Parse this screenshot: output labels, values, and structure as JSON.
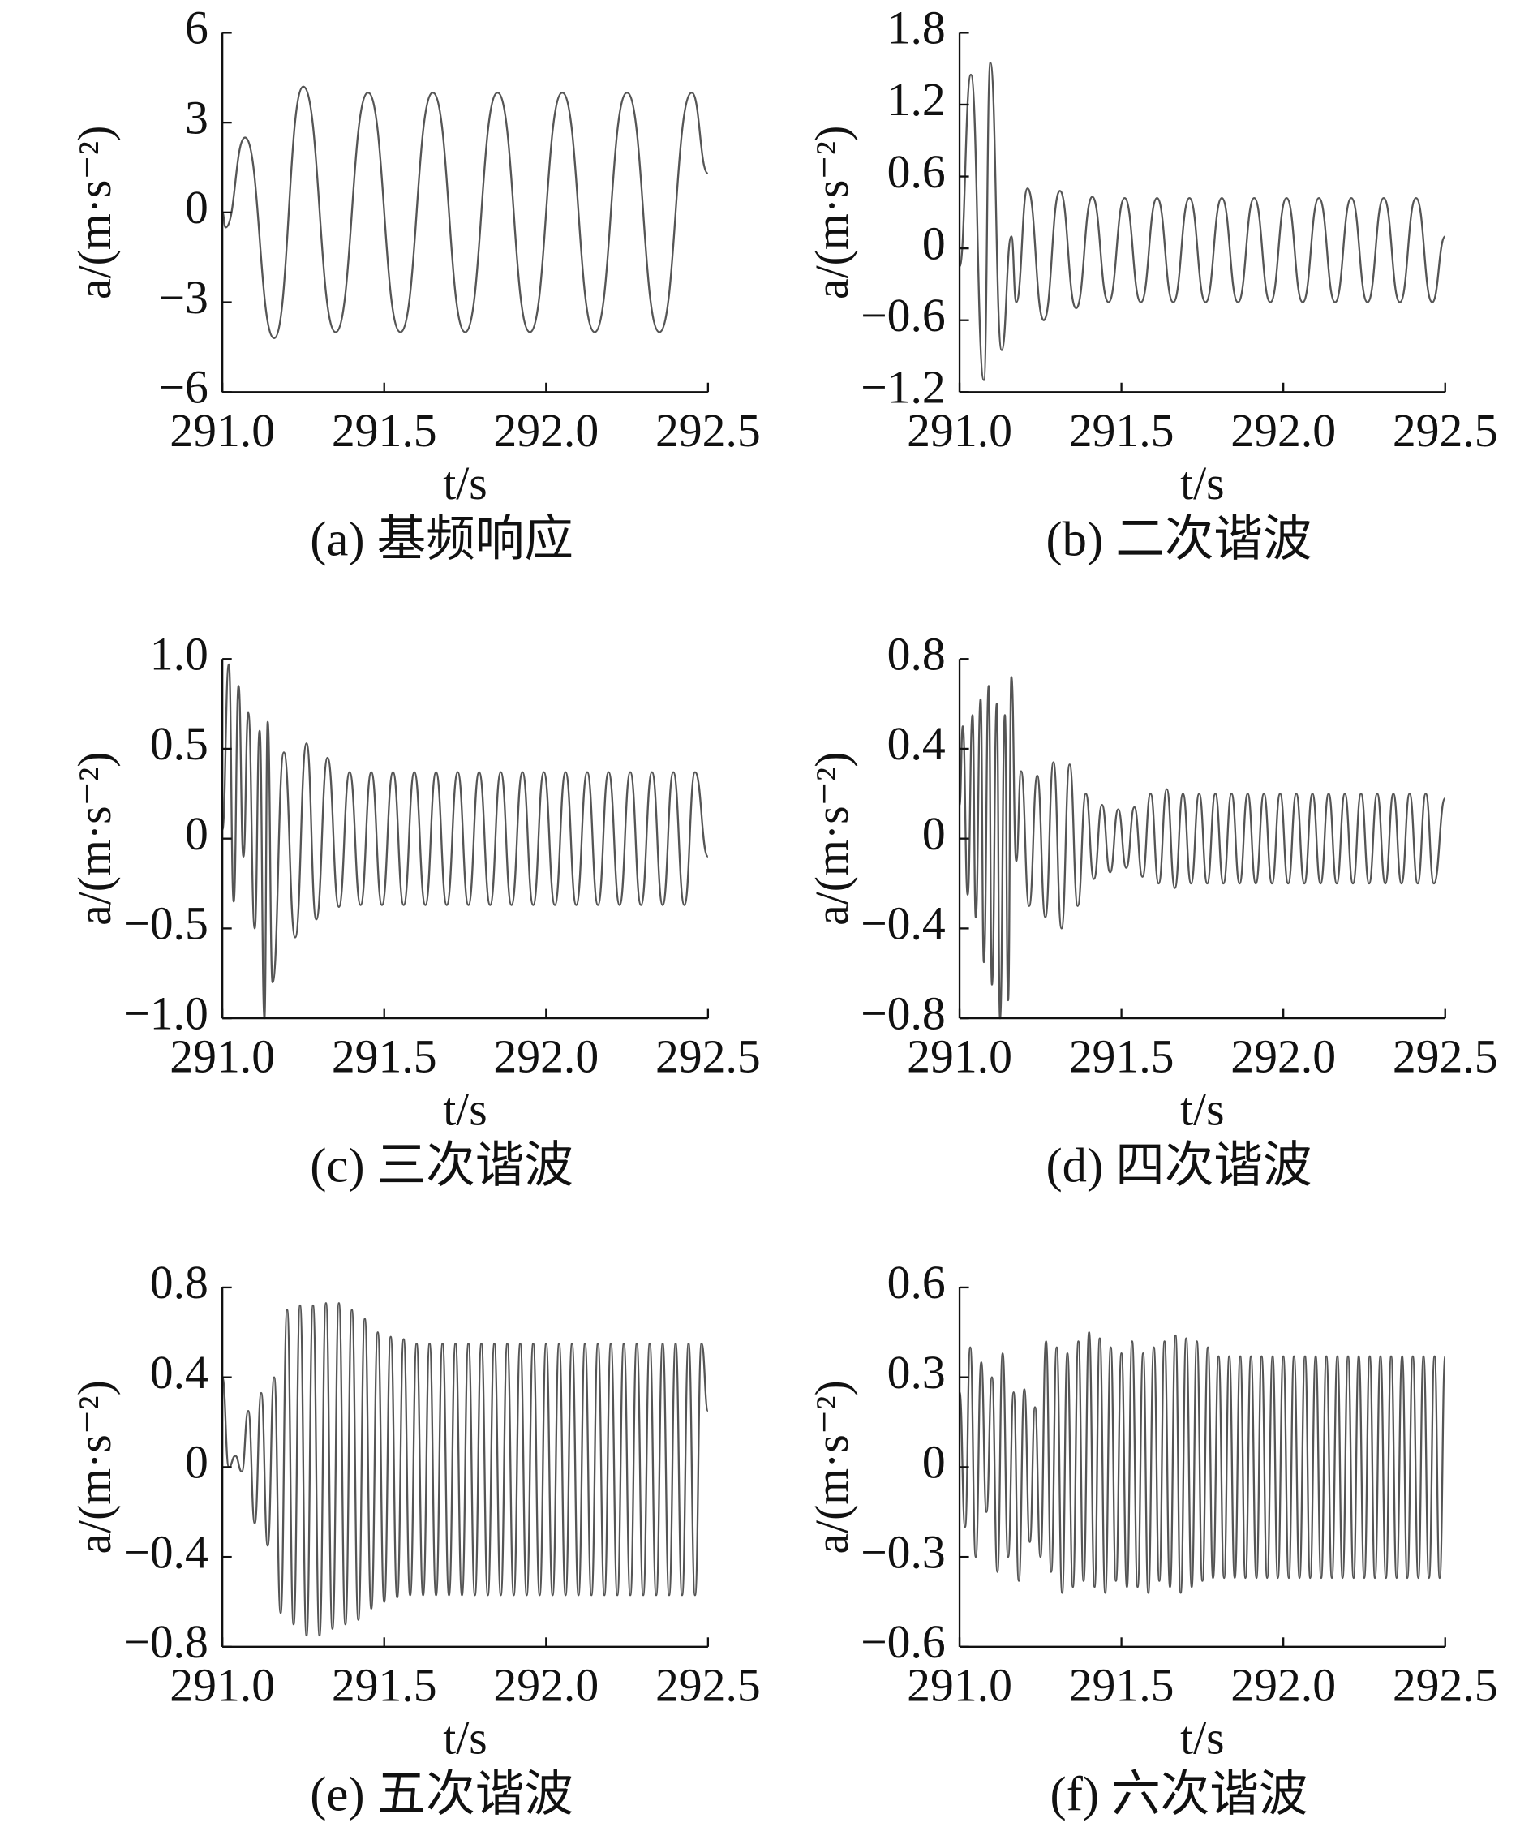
{
  "chart_data": [
    {
      "type": "line",
      "title": "(a) 基频响应",
      "xlabel": "t/s",
      "ylabel": "a/(m·s⁻²)",
      "x": [
        291,
        291.01,
        291.07,
        291.16,
        291.25,
        291.35,
        291.45,
        291.55,
        291.65,
        291.75,
        291.85,
        291.95,
        292.05,
        292.15,
        292.25,
        292.35,
        292.45,
        292.5
      ],
      "values": [
        0,
        -0.5,
        2.5,
        -4.2,
        4.2,
        -4,
        4,
        -4,
        4,
        -4,
        4,
        -4,
        4,
        -4,
        4,
        -4,
        4,
        1.3
      ],
      "xlim": [
        291,
        292.5
      ],
      "xticks": [
        {
          "value": 291,
          "label": "291.0"
        },
        291.5,
        {
          "value": 292,
          "label": "292.0"
        },
        292.5
      ],
      "ylim": [
        -6,
        6
      ],
      "yticks": [
        {
          "value": -6,
          "label": "−6"
        },
        {
          "value": -3,
          "label": "−3"
        },
        0,
        3,
        6
      ]
    },
    {
      "type": "line",
      "title": "(b) 二次谐波",
      "xlabel": "t/s",
      "ylabel": "a/(m·s⁻²)",
      "x": [
        291,
        291.035,
        291.075,
        291.095,
        291.13,
        291.16,
        291.175,
        291.21,
        291.26,
        291.31,
        291.36,
        291.41,
        291.46,
        291.51,
        291.56,
        291.61,
        291.66,
        291.71,
        291.76,
        291.81,
        291.86,
        291.91,
        291.96,
        292.01,
        292.06,
        292.11,
        292.16,
        292.21,
        292.26,
        292.31,
        292.36,
        292.41,
        292.46,
        292.5
      ],
      "values": [
        -0.15,
        1.45,
        -1.1,
        1.55,
        -0.85,
        0.1,
        -0.45,
        0.5,
        -0.6,
        0.48,
        -0.5,
        0.43,
        -0.45,
        0.42,
        -0.45,
        0.42,
        -0.45,
        0.42,
        -0.45,
        0.42,
        -0.45,
        0.42,
        -0.45,
        0.42,
        -0.45,
        0.42,
        -0.45,
        0.42,
        -0.45,
        0.42,
        -0.45,
        0.42,
        -0.45,
        0.1
      ],
      "xlim": [
        291,
        292.5
      ],
      "xticks": [
        {
          "value": 291,
          "label": "291.0"
        },
        291.5,
        {
          "value": 292,
          "label": "292.0"
        },
        292.5
      ],
      "ylim": [
        -1.2,
        1.8
      ],
      "yticks": [
        {
          "value": -1.2,
          "label": "−1.2"
        },
        {
          "value": -0.6,
          "label": "−0.6"
        },
        0,
        0.6,
        1.2,
        1.8
      ]
    },
    {
      "type": "line",
      "title": "(c) 三次谐波",
      "xlabel": "t/s",
      "ylabel": "a/(m·s⁻²)",
      "x": [
        291,
        291.02,
        291.035,
        291.05,
        291.065,
        291.08,
        291.1,
        291.115,
        291.13,
        291.14,
        291.155,
        291.19,
        291.225,
        291.26,
        291.29,
        291.325,
        291.36,
        291.393,
        291.427,
        291.46,
        291.493,
        291.527,
        291.56,
        291.593,
        291.627,
        291.66,
        291.693,
        291.727,
        291.76,
        291.793,
        291.827,
        291.86,
        291.893,
        291.927,
        291.96,
        291.993,
        292.027,
        292.06,
        292.093,
        292.127,
        292.16,
        292.193,
        292.227,
        292.26,
        292.293,
        292.327,
        292.36,
        292.393,
        292.427,
        292.46,
        292.5
      ],
      "values": [
        0.05,
        0.97,
        -0.35,
        0.85,
        -0.1,
        0.7,
        -0.5,
        0.6,
        -1.0,
        0.65,
        -0.8,
        0.48,
        -0.55,
        0.53,
        -0.45,
        0.45,
        -0.38,
        0.37,
        -0.37,
        0.37,
        -0.37,
        0.37,
        -0.37,
        0.37,
        -0.37,
        0.37,
        -0.37,
        0.37,
        -0.37,
        0.37,
        -0.37,
        0.37,
        -0.37,
        0.37,
        -0.37,
        0.37,
        -0.37,
        0.37,
        -0.37,
        0.37,
        -0.37,
        0.37,
        -0.37,
        0.37,
        -0.37,
        0.37,
        -0.37,
        0.37,
        -0.37,
        0.37,
        -0.1
      ],
      "xlim": [
        291,
        292.5
      ],
      "xticks": [
        {
          "value": 291,
          "label": "291.0"
        },
        291.5,
        {
          "value": 292,
          "label": "292.0"
        },
        292.5
      ],
      "ylim": [
        -1,
        1
      ],
      "yticks": [
        {
          "value": -1,
          "label": "−1.0"
        },
        {
          "value": -0.5,
          "label": "−0.5"
        },
        0,
        0.5,
        {
          "value": 1,
          "label": "1.0"
        }
      ]
    },
    {
      "type": "line",
      "title": "(d) 四次谐波",
      "xlabel": "t/s",
      "ylabel": "a/(m·s⁻²)",
      "x": [
        291,
        291.01,
        291.025,
        291.04,
        291.05,
        291.065,
        291.075,
        291.09,
        291.1,
        291.115,
        291.125,
        291.14,
        291.15,
        291.16,
        291.175,
        291.19,
        291.215,
        291.24,
        291.265,
        291.29,
        291.315,
        291.34,
        291.365,
        291.39,
        291.415,
        291.44,
        291.465,
        291.49,
        291.515,
        291.54,
        291.565,
        291.59,
        291.615,
        291.64,
        291.665,
        291.69,
        291.715,
        291.74,
        291.765,
        291.79,
        291.815,
        291.84,
        291.865,
        291.89,
        291.915,
        291.94,
        291.965,
        291.99,
        292.015,
        292.04,
        292.065,
        292.09,
        292.115,
        292.14,
        292.165,
        292.19,
        292.215,
        292.24,
        292.265,
        292.29,
        292.315,
        292.34,
        292.365,
        292.39,
        292.415,
        292.44,
        292.465,
        292.5
      ],
      "values": [
        0.15,
        0.5,
        -0.25,
        0.55,
        -0.35,
        0.62,
        -0.55,
        0.68,
        -0.65,
        0.6,
        -0.8,
        0.55,
        -0.72,
        0.72,
        -0.1,
        0.3,
        -0.3,
        0.28,
        -0.35,
        0.34,
        -0.4,
        0.33,
        -0.3,
        0.2,
        -0.18,
        0.15,
        -0.15,
        0.13,
        -0.13,
        0.14,
        -0.17,
        0.2,
        -0.2,
        0.22,
        -0.22,
        0.2,
        -0.2,
        0.2,
        -0.2,
        0.2,
        -0.2,
        0.2,
        -0.2,
        0.2,
        -0.2,
        0.2,
        -0.2,
        0.2,
        -0.2,
        0.2,
        -0.2,
        0.2,
        -0.2,
        0.2,
        -0.2,
        0.2,
        -0.2,
        0.2,
        -0.2,
        0.2,
        -0.2,
        0.2,
        -0.2,
        0.2,
        -0.2,
        0.2,
        -0.2,
        0.18
      ],
      "xlim": [
        291,
        292.5
      ],
      "xticks": [
        {
          "value": 291,
          "label": "291.0"
        },
        291.5,
        {
          "value": 292,
          "label": "292.0"
        },
        292.5
      ],
      "ylim": [
        -0.8,
        0.8
      ],
      "yticks": [
        {
          "value": -0.8,
          "label": "−0.8"
        },
        {
          "value": -0.4,
          "label": "−0.4"
        },
        0,
        0.4,
        0.8
      ]
    },
    {
      "type": "line",
      "title": "(e) 五次谐波",
      "xlabel": "t/s",
      "ylabel": "a/(m·s⁻²)",
      "x": [
        291,
        291.02,
        291.04,
        291.06,
        291.08,
        291.1,
        291.12,
        291.14,
        291.16,
        291.18,
        291.2,
        291.22,
        291.24,
        291.26,
        291.28,
        291.3,
        291.32,
        291.34,
        291.36,
        291.38,
        291.4,
        291.42,
        291.44,
        291.46,
        291.48,
        291.5,
        291.52,
        291.54,
        291.56,
        291.58,
        291.6,
        291.62,
        291.64,
        291.66,
        291.68,
        291.7,
        291.72,
        291.74,
        291.76,
        291.78,
        291.8,
        291.82,
        291.84,
        291.86,
        291.88,
        291.9,
        291.92,
        291.94,
        291.96,
        291.98,
        292,
        292.02,
        292.04,
        292.06,
        292.08,
        292.1,
        292.12,
        292.14,
        292.16,
        292.18,
        292.2,
        292.22,
        292.24,
        292.26,
        292.28,
        292.3,
        292.32,
        292.34,
        292.36,
        292.38,
        292.4,
        292.42,
        292.44,
        292.46,
        292.48,
        292.5
      ],
      "values": [
        0.4,
        0,
        0.05,
        -0.02,
        0.25,
        -0.25,
        0.33,
        -0.35,
        0.4,
        -0.65,
        0.7,
        -0.7,
        0.72,
        -0.75,
        0.72,
        -0.75,
        0.73,
        -0.72,
        0.73,
        -0.7,
        0.7,
        -0.68,
        0.66,
        -0.63,
        0.6,
        -0.6,
        0.58,
        -0.58,
        0.57,
        -0.57,
        0.55,
        -0.57,
        0.55,
        -0.57,
        0.55,
        -0.57,
        0.55,
        -0.57,
        0.55,
        -0.57,
        0.55,
        -0.57,
        0.55,
        -0.57,
        0.55,
        -0.57,
        0.55,
        -0.57,
        0.55,
        -0.57,
        0.55,
        -0.57,
        0.55,
        -0.57,
        0.55,
        -0.57,
        0.55,
        -0.57,
        0.55,
        -0.57,
        0.55,
        -0.57,
        0.55,
        -0.57,
        0.55,
        -0.57,
        0.55,
        -0.57,
        0.55,
        -0.57,
        0.55,
        -0.57,
        0.55,
        -0.57,
        0.55,
        0.25
      ],
      "xlim": [
        291,
        292.5
      ],
      "xticks": [
        {
          "value": 291,
          "label": "291.0"
        },
        291.5,
        {
          "value": 292,
          "label": "292.0"
        },
        292.5
      ],
      "ylim": [
        -0.8,
        0.8
      ],
      "yticks": [
        {
          "value": -0.8,
          "label": "−0.8"
        },
        {
          "value": -0.4,
          "label": "−0.4"
        },
        0,
        0.4,
        0.8
      ]
    },
    {
      "type": "line",
      "title": "(f) 六次谐波",
      "xlabel": "t/s",
      "ylabel": "a/(m·s⁻²)",
      "x": [
        291,
        291.017,
        291.033,
        291.05,
        291.067,
        291.083,
        291.1,
        291.117,
        291.133,
        291.15,
        291.167,
        291.183,
        291.2,
        291.217,
        291.233,
        291.25,
        291.267,
        291.283,
        291.3,
        291.317,
        291.333,
        291.35,
        291.367,
        291.383,
        291.4,
        291.417,
        291.433,
        291.45,
        291.467,
        291.483,
        291.5,
        291.517,
        291.533,
        291.55,
        291.567,
        291.583,
        291.6,
        291.617,
        291.633,
        291.65,
        291.667,
        291.683,
        291.7,
        291.717,
        291.733,
        291.75,
        291.767,
        291.783,
        291.8,
        291.817,
        291.833,
        291.85,
        291.867,
        291.883,
        291.9,
        291.917,
        291.933,
        291.95,
        291.967,
        291.983,
        292,
        292.017,
        292.033,
        292.05,
        292.067,
        292.083,
        292.1,
        292.117,
        292.133,
        292.15,
        292.167,
        292.183,
        292.2,
        292.217,
        292.233,
        292.25,
        292.267,
        292.283,
        292.3,
        292.317,
        292.333,
        292.35,
        292.367,
        292.383,
        292.4,
        292.417,
        292.433,
        292.45,
        292.467,
        292.483,
        292.5
      ],
      "values": [
        0.25,
        -0.2,
        0.4,
        -0.3,
        0.35,
        -0.15,
        0.3,
        -0.35,
        0.38,
        -0.3,
        0.25,
        -0.38,
        0.26,
        -0.25,
        0.2,
        -0.3,
        0.42,
        -0.35,
        0.4,
        -0.42,
        0.38,
        -0.4,
        0.42,
        -0.38,
        0.45,
        -0.4,
        0.43,
        -0.42,
        0.4,
        -0.38,
        0.38,
        -0.4,
        0.42,
        -0.4,
        0.38,
        -0.42,
        0.4,
        -0.38,
        0.42,
        -0.4,
        0.44,
        -0.42,
        0.43,
        -0.4,
        0.42,
        -0.38,
        0.4,
        -0.37,
        0.37,
        -0.37,
        0.37,
        -0.37,
        0.37,
        -0.37,
        0.37,
        -0.37,
        0.37,
        -0.37,
        0.37,
        -0.37,
        0.37,
        -0.37,
        0.37,
        -0.37,
        0.37,
        -0.37,
        0.37,
        -0.37,
        0.37,
        -0.37,
        0.37,
        -0.37,
        0.37,
        -0.37,
        0.37,
        -0.37,
        0.37,
        -0.37,
        0.37,
        -0.37,
        0.37,
        -0.37,
        0.37,
        -0.37,
        0.37,
        -0.37,
        0.37,
        -0.37,
        0.37,
        -0.37,
        0.37
      ],
      "xlim": [
        291,
        292.5
      ],
      "xticks": [
        {
          "value": 291,
          "label": "291.0"
        },
        291.5,
        {
          "value": 292,
          "label": "292.0"
        },
        292.5
      ],
      "ylim": [
        -0.6,
        0.6
      ],
      "yticks": [
        {
          "value": -0.6,
          "label": "−0.6"
        },
        {
          "value": -0.3,
          "label": "−0.3"
        },
        0,
        0.3,
        0.6
      ]
    }
  ]
}
